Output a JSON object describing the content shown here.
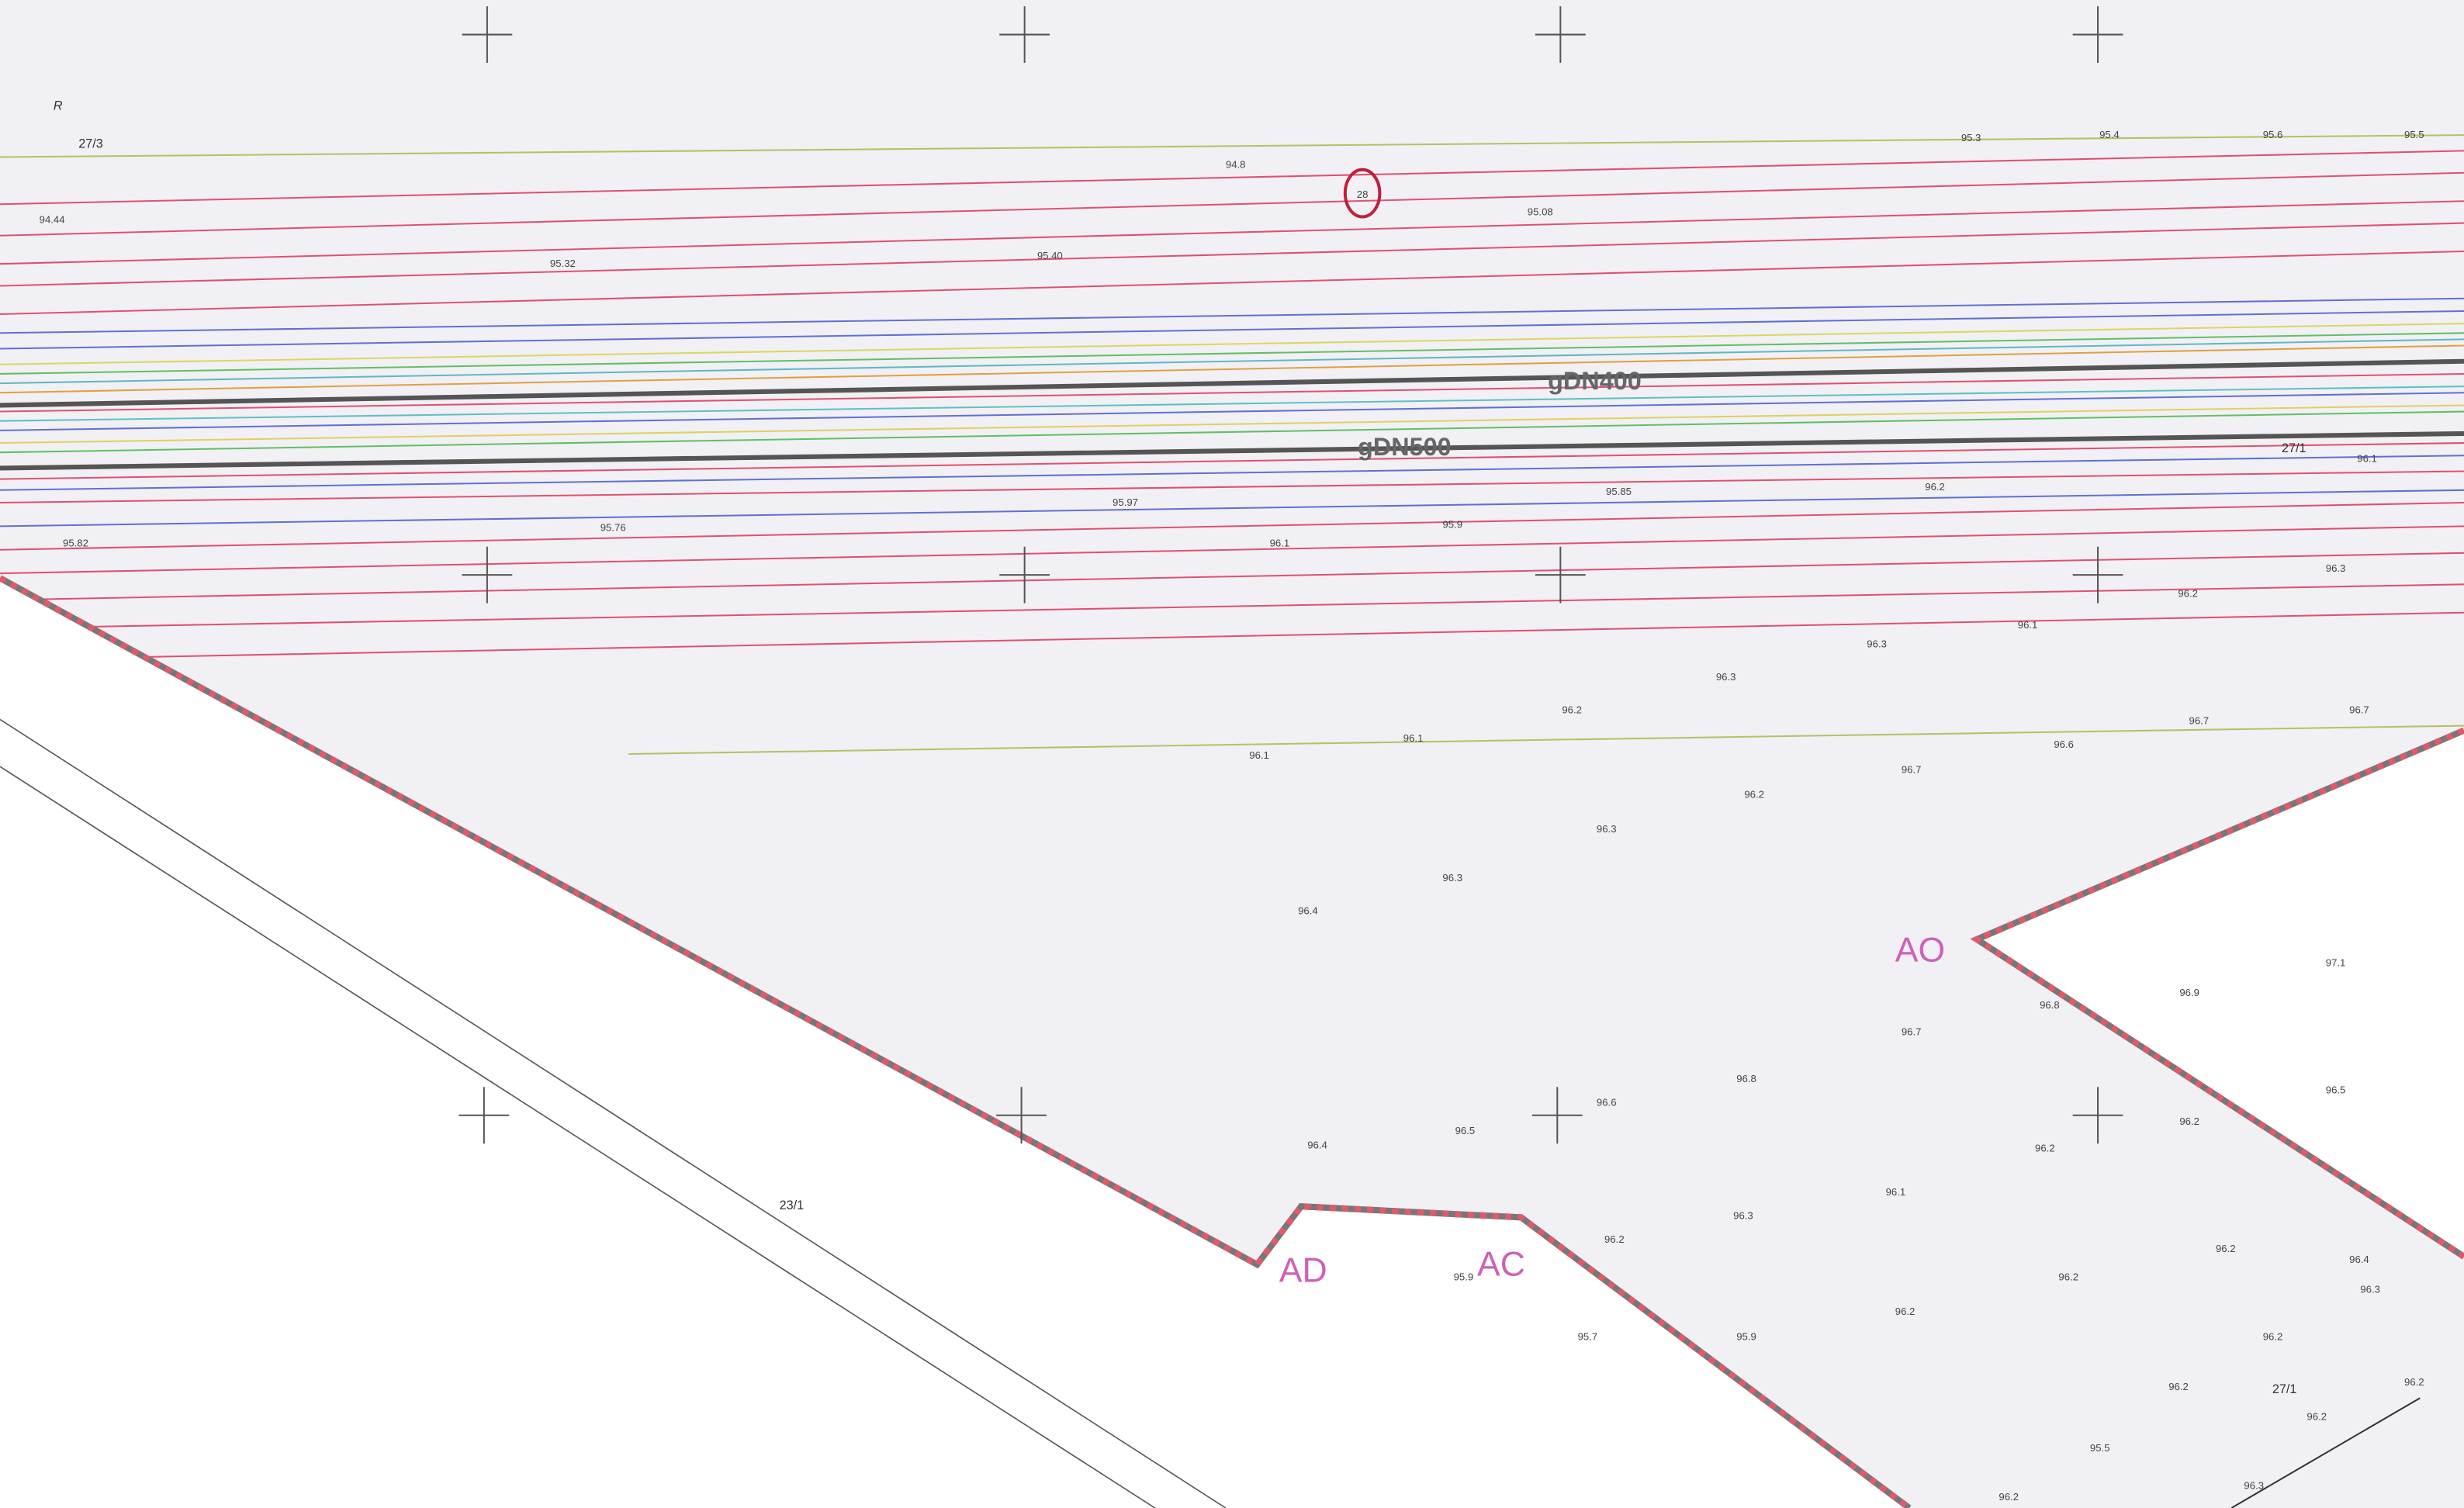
{
  "sheet_mark": "R",
  "marker": "28",
  "parcels": [
    "27/3",
    "27/1",
    "23/1",
    "27/1"
  ],
  "pipes": [
    "gDN400",
    "gDN500"
  ],
  "points": [
    "AO",
    "AD",
    "AC"
  ],
  "elevations": [
    "94.44",
    "95.32",
    "95.40",
    "95.08",
    "94.8",
    "95.3",
    "95.4",
    "95.6",
    "95.5",
    "95.76",
    "95.97",
    "95.85",
    "95.82",
    "96.1",
    "95.9",
    "96.2",
    "96.1",
    "96.3",
    "96.2",
    "96.1",
    "96.3",
    "96.3",
    "96.2",
    "96.1",
    "96.1",
    "96.7",
    "96.7",
    "96.6",
    "96.7",
    "96.2",
    "96.3",
    "96.3",
    "96.4",
    "97.1",
    "96.9",
    "96.8",
    "96.7",
    "96.8",
    "96.6",
    "96.5",
    "96.4",
    "96.5",
    "96.2",
    "96.2",
    "96.1",
    "96.3",
    "96.2",
    "95.9",
    "95.7",
    "95.9",
    "96.2",
    "96.2",
    "96.2",
    "96.4",
    "96.3",
    "96.2",
    "96.2",
    "96.2",
    "96.2",
    "95.5",
    "96.3",
    "96.2"
  ]
}
